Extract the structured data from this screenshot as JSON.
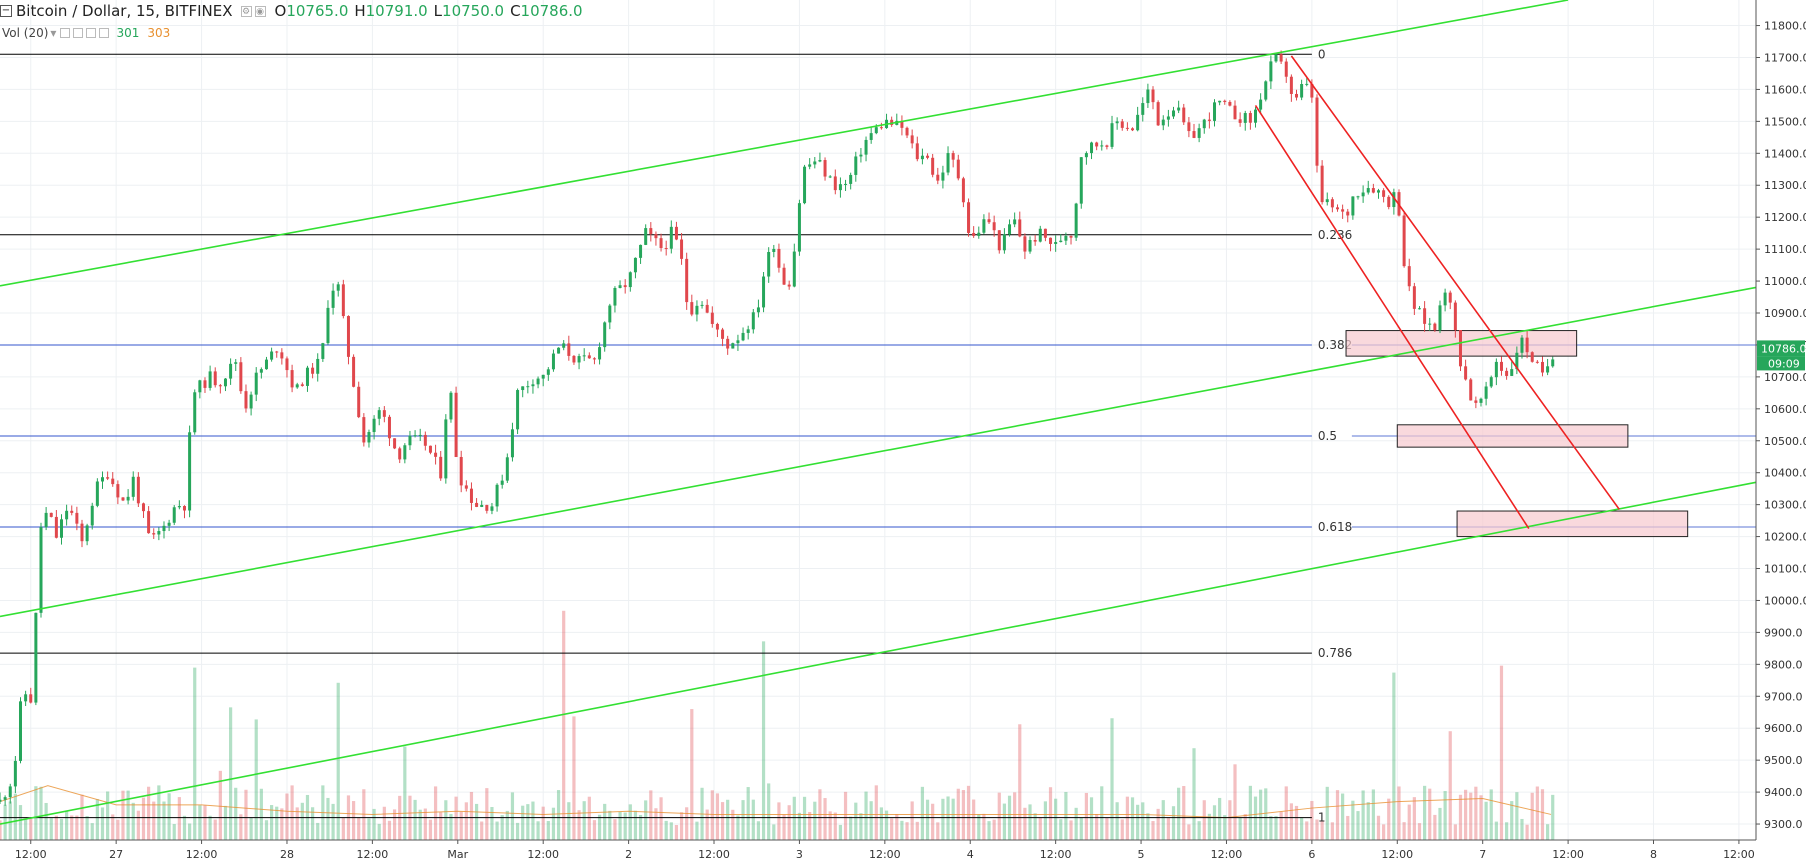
{
  "header": {
    "symbol": "Bitcoin / Dollar, 15, BITFINEX",
    "open_label": "O",
    "open": "10765.0",
    "high_label": "H",
    "high": "10791.0",
    "low_label": "L",
    "low": "10750.0",
    "close_label": "C",
    "close": "10786.0"
  },
  "volume_legend": {
    "label": "Vol (20)",
    "value1": "301",
    "value2": "303"
  },
  "colors": {
    "up": "#26a65b",
    "down": "#e0474c",
    "channel_green": "#33e033",
    "channel_red": "#ee2222",
    "fib_blue": "#3355cc",
    "box_fill": "#f7c9cf",
    "vol_ma": "#e8902f",
    "price_label_bg": "#26a65b"
  },
  "chart_data": {
    "type": "candlestick",
    "interval": "15",
    "ylim": [
      9250,
      11880
    ],
    "y_ticks": [
      9300,
      9400,
      9500,
      9600,
      9700,
      9800,
      9900,
      10000,
      10100,
      10200,
      10300,
      10400,
      10500,
      10600,
      10700,
      10800,
      10900,
      11000,
      11100,
      11200,
      11300,
      11400,
      11500,
      11600,
      11700,
      11800
    ],
    "x_ticks": [
      {
        "t": 0.0,
        "label": "12:00"
      },
      {
        "t": 0.5,
        "label": "27"
      },
      {
        "t": 1.0,
        "label": "12:00"
      },
      {
        "t": 1.5,
        "label": "28"
      },
      {
        "t": 2.0,
        "label": "12:00"
      },
      {
        "t": 2.5,
        "label": "Mar"
      },
      {
        "t": 3.0,
        "label": "12:00"
      },
      {
        "t": 3.5,
        "label": "2"
      },
      {
        "t": 4.0,
        "label": "12:00"
      },
      {
        "t": 4.5,
        "label": "3"
      },
      {
        "t": 5.0,
        "label": "12:00"
      },
      {
        "t": 5.5,
        "label": "4"
      },
      {
        "t": 6.0,
        "label": "12:00"
      },
      {
        "t": 6.5,
        "label": "5"
      },
      {
        "t": 7.0,
        "label": "12:00"
      },
      {
        "t": 7.5,
        "label": "6"
      },
      {
        "t": 8.0,
        "label": "12:00"
      },
      {
        "t": 8.5,
        "label": "7"
      },
      {
        "t": 9.0,
        "label": "12:00"
      },
      {
        "t": 9.5,
        "label": "8"
      },
      {
        "t": 10.0,
        "label": "12:00"
      }
    ],
    "xlim": [
      -0.18,
      10.1
    ],
    "price_path": [
      [
        -0.18,
        9370
      ],
      [
        -0.1,
        9450
      ],
      [
        -0.05,
        9720
      ],
      [
        0.0,
        9690
      ],
      [
        0.03,
        9950
      ],
      [
        0.05,
        10220
      ],
      [
        0.1,
        10280
      ],
      [
        0.15,
        10200
      ],
      [
        0.22,
        10300
      ],
      [
        0.3,
        10180
      ],
      [
        0.38,
        10350
      ],
      [
        0.45,
        10400
      ],
      [
        0.55,
        10300
      ],
      [
        0.6,
        10380
      ],
      [
        0.7,
        10180
      ],
      [
        0.78,
        10230
      ],
      [
        0.85,
        10300
      ],
      [
        0.9,
        10300
      ],
      [
        0.95,
        10650
      ],
      [
        1.05,
        10700
      ],
      [
        1.1,
        10680
      ],
      [
        1.2,
        10750
      ],
      [
        1.25,
        10600
      ],
      [
        1.32,
        10700
      ],
      [
        1.45,
        10800
      ],
      [
        1.55,
        10650
      ],
      [
        1.6,
        10700
      ],
      [
        1.7,
        10750
      ],
      [
        1.75,
        10980
      ],
      [
        1.8,
        10980
      ],
      [
        1.85,
        10800
      ],
      [
        1.95,
        10500
      ],
      [
        2.05,
        10600
      ],
      [
        2.15,
        10450
      ],
      [
        2.2,
        10500
      ],
      [
        2.3,
        10500
      ],
      [
        2.4,
        10400
      ],
      [
        2.45,
        10700
      ],
      [
        2.5,
        10400
      ],
      [
        2.6,
        10300
      ],
      [
        2.7,
        10300
      ],
      [
        2.78,
        10420
      ],
      [
        2.85,
        10650
      ],
      [
        2.95,
        10700
      ],
      [
        3.0,
        10700
      ],
      [
        3.1,
        10800
      ],
      [
        3.2,
        10750
      ],
      [
        3.3,
        10750
      ],
      [
        3.4,
        10950
      ],
      [
        3.5,
        11000
      ],
      [
        3.6,
        11150
      ],
      [
        3.7,
        11100
      ],
      [
        3.75,
        11150
      ],
      [
        3.8,
        11100
      ],
      [
        3.85,
        10900
      ],
      [
        3.92,
        10950
      ],
      [
        4.0,
        10850
      ],
      [
        4.08,
        10800
      ],
      [
        4.15,
        10830
      ],
      [
        4.25,
        10900
      ],
      [
        4.3,
        11050
      ],
      [
        4.35,
        11120
      ],
      [
        4.4,
        11000
      ],
      [
        4.45,
        11000
      ],
      [
        4.52,
        11350
      ],
      [
        4.6,
        11380
      ],
      [
        4.7,
        11300
      ],
      [
        4.78,
        11300
      ],
      [
        4.85,
        11400
      ],
      [
        4.9,
        11450
      ],
      [
        5.0,
        11500
      ],
      [
        5.1,
        11480
      ],
      [
        5.2,
        11380
      ],
      [
        5.25,
        11400
      ],
      [
        5.3,
        11300
      ],
      [
        5.38,
        11400
      ],
      [
        5.45,
        11300
      ],
      [
        5.5,
        11120
      ],
      [
        5.6,
        11200
      ],
      [
        5.68,
        11100
      ],
      [
        5.75,
        11200
      ],
      [
        5.82,
        11100
      ],
      [
        5.9,
        11150
      ],
      [
        6.0,
        11110
      ],
      [
        6.05,
        11150
      ],
      [
        6.1,
        11150
      ],
      [
        6.15,
        11400
      ],
      [
        6.2,
        11420
      ],
      [
        6.3,
        11440
      ],
      [
        6.35,
        11500
      ],
      [
        6.45,
        11480
      ],
      [
        6.55,
        11600
      ],
      [
        6.6,
        11500
      ],
      [
        6.7,
        11550
      ],
      [
        6.78,
        11450
      ],
      [
        6.85,
        11480
      ],
      [
        6.95,
        11560
      ],
      [
        7.05,
        11520
      ],
      [
        7.15,
        11500
      ],
      [
        7.2,
        11580
      ],
      [
        7.28,
        11700
      ],
      [
        7.35,
        11650
      ],
      [
        7.4,
        11550
      ],
      [
        7.45,
        11620
      ],
      [
        7.5,
        11580
      ],
      [
        7.52,
        11400
      ],
      [
        7.55,
        11250
      ],
      [
        7.62,
        11230
      ],
      [
        7.7,
        11200
      ],
      [
        7.75,
        11280
      ],
      [
        7.85,
        11300
      ],
      [
        7.95,
        11250
      ],
      [
        8.0,
        11280
      ],
      [
        8.05,
        11000
      ],
      [
        8.1,
        10920
      ],
      [
        8.15,
        10880
      ],
      [
        8.22,
        10850
      ],
      [
        8.27,
        11000
      ],
      [
        8.32,
        10900
      ],
      [
        8.37,
        10750
      ],
      [
        8.45,
        10600
      ],
      [
        8.52,
        10650
      ],
      [
        8.58,
        10750
      ],
      [
        8.65,
        10700
      ],
      [
        8.72,
        10820
      ],
      [
        8.8,
        10750
      ],
      [
        8.85,
        10700
      ],
      [
        8.92,
        10786
      ]
    ],
    "volume_path": [
      [
        -0.18,
        9370
      ],
      [
        0.1,
        9420
      ],
      [
        0.5,
        9360
      ],
      [
        1.0,
        9360
      ],
      [
        1.5,
        9340
      ],
      [
        2.0,
        9330
      ],
      [
        2.5,
        9340
      ],
      [
        3.0,
        9330
      ],
      [
        3.5,
        9340
      ],
      [
        4.0,
        9330
      ],
      [
        4.5,
        9330
      ],
      [
        5.0,
        9330
      ],
      [
        5.5,
        9330
      ],
      [
        6.0,
        9330
      ],
      [
        6.5,
        9330
      ],
      [
        7.0,
        9320
      ],
      [
        7.5,
        9350
      ],
      [
        8.0,
        9370
      ],
      [
        8.5,
        9380
      ],
      [
        8.9,
        9330
      ]
    ],
    "fib_levels": [
      {
        "label": "0",
        "value": 11710,
        "color": "#000000"
      },
      {
        "label": "0.236",
        "value": 11145,
        "color": "#000000"
      },
      {
        "label": "0.382",
        "value": 10800,
        "color": "#3355cc"
      },
      {
        "label": "0.5",
        "value": 10515,
        "color": "#3355cc"
      },
      {
        "label": "0.618",
        "value": 10230,
        "color": "#3355cc"
      },
      {
        "label": "0.786",
        "value": 9835,
        "color": "#000000"
      },
      {
        "label": "1",
        "value": 9320,
        "color": "#000000"
      }
    ],
    "fib_x_end": 7.5,
    "trend_lines": [
      {
        "color": "#33e033",
        "x1": -0.18,
        "y1": 10985,
        "x2": 9.0,
        "y2": 11880
      },
      {
        "color": "#33e033",
        "x1": -0.18,
        "y1": 9950,
        "x2": 10.1,
        "y2": 10980
      },
      {
        "color": "#33e033",
        "x1": -0.18,
        "y1": 9300,
        "x2": 10.1,
        "y2": 10370
      },
      {
        "color": "#ee2222",
        "x1": 7.17,
        "y1": 11550,
        "x2": 8.77,
        "y2": 10225
      },
      {
        "color": "#ee2222",
        "x1": 7.38,
        "y1": 11705,
        "x2": 9.3,
        "y2": 10285
      }
    ],
    "zones": [
      {
        "x1": 7.7,
        "x2": 9.05,
        "y_top": 10845,
        "y_bot": 10765
      },
      {
        "x1": 8.0,
        "x2": 9.35,
        "y_top": 10550,
        "y_bot": 10480
      },
      {
        "x1": 8.35,
        "x2": 9.7,
        "y_top": 10280,
        "y_bot": 10200
      }
    ],
    "last_price": "10786.0",
    "countdown": "09:09"
  }
}
